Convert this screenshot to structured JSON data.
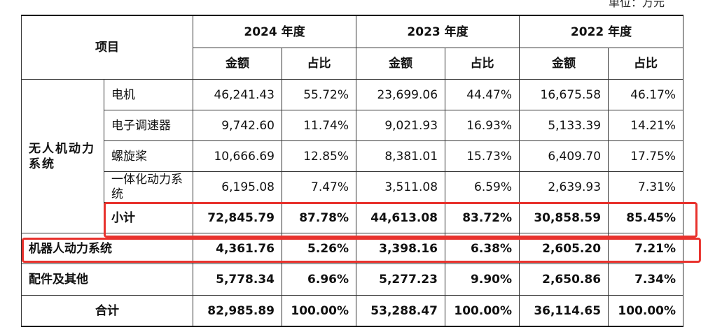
{
  "unit_note": "单位：万元",
  "header": {
    "item": "项目",
    "years": [
      "2024 年度",
      "2023 年度",
      "2022 年度"
    ],
    "amount": "金额",
    "ratio": "占比"
  },
  "group": {
    "name": "无人机动力系统",
    "rows": [
      {
        "label": "电机",
        "values": [
          "46,241.43",
          "55.72%",
          "23,699.06",
          "44.47%",
          "16,675.58",
          "46.17%"
        ]
      },
      {
        "label": "电子调速器",
        "values": [
          "9,742.60",
          "11.74%",
          "9,021.93",
          "16.93%",
          "5,133.39",
          "14.21%"
        ]
      },
      {
        "label": "螺旋桨",
        "values": [
          "10,666.69",
          "12.85%",
          "8,381.01",
          "15.73%",
          "6,409.70",
          "17.75%"
        ]
      },
      {
        "label": "一体化动力系统",
        "values": [
          "6,195.08",
          "7.47%",
          "3,511.08",
          "6.59%",
          "2,639.93",
          "7.31%"
        ]
      }
    ],
    "subtotal": {
      "label": "小计",
      "values": [
        "72,845.79",
        "87.78%",
        "44,613.08",
        "83.72%",
        "30,858.59",
        "85.45%"
      ]
    }
  },
  "robot": {
    "label": "机器人动力系统",
    "values": [
      "4,361.76",
      "5.26%",
      "3,398.16",
      "6.38%",
      "2,605.20",
      "7.21%"
    ]
  },
  "parts": {
    "label": "配件及其他",
    "values": [
      "5,778.34",
      "6.96%",
      "5,277.23",
      "9.90%",
      "2,650.86",
      "7.34%"
    ]
  },
  "total": {
    "label": "合计",
    "values": [
      "82,985.89",
      "100.00%",
      "53,288.47",
      "100.00%",
      "36,114.65",
      "100.00%"
    ]
  },
  "highlight_color": "#e8322d"
}
